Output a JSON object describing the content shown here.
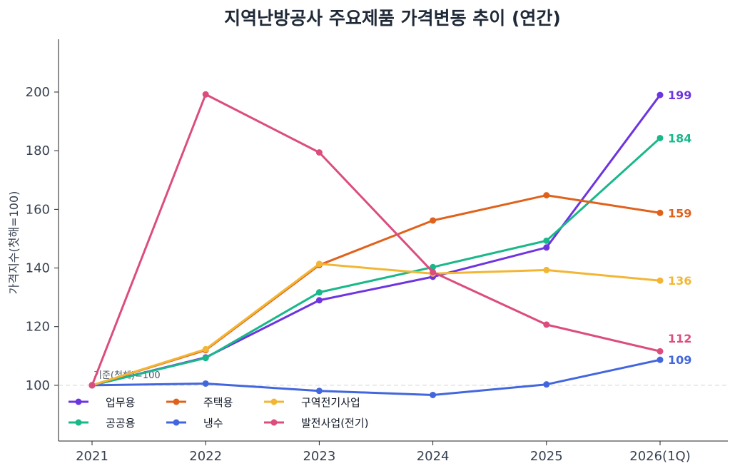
{
  "chart_data": {
    "type": "line",
    "title": "지역난방공사 주요제품 가격변동 추이 (연간)",
    "xlabel": "",
    "ylabel": "가격지수(첫해=100)",
    "x": [
      "2021",
      "2022",
      "2023",
      "2024",
      "2025",
      "2026(1Q)"
    ],
    "yticks": [
      100,
      120,
      140,
      160,
      180,
      200
    ],
    "ylim": [
      81,
      218
    ],
    "grid": false,
    "legend_position": "bottom-left",
    "baseline": {
      "value": 100,
      "label": "기준(첫해)=100"
    },
    "series": [
      {
        "name": "업무용",
        "color": "#6d35e0",
        "values": [
          100,
          109.5,
          129,
          137,
          147,
          199
        ],
        "end_label": "199"
      },
      {
        "name": "공공용",
        "color": "#19b88a",
        "values": [
          100,
          109.3,
          131.7,
          140.3,
          149.3,
          184.3
        ],
        "end_label": "184"
      },
      {
        "name": "주택용",
        "color": "#e0611b",
        "values": [
          100,
          112,
          141,
          156.2,
          164.8,
          158.8
        ],
        "end_label": "159"
      },
      {
        "name": "냉수",
        "color": "#4266dd",
        "values": [
          100,
          100.6,
          98.1,
          96.7,
          100.3,
          108.7
        ],
        "end_label": "109"
      },
      {
        "name": "구역전기사업",
        "color": "#f2b634",
        "values": [
          100,
          112.3,
          141.4,
          138.1,
          139.3,
          135.7
        ],
        "end_label": "136"
      },
      {
        "name": "발전사업(전기)",
        "color": "#dc4d7f",
        "values": [
          100,
          199.2,
          179.4,
          138.6,
          120.7,
          111.6
        ],
        "end_label": "112"
      }
    ]
  }
}
